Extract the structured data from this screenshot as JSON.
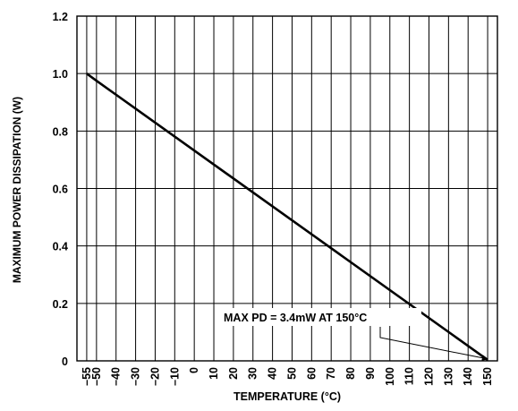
{
  "chart_data": {
    "type": "line",
    "title": "",
    "xlabel": "TEMPERATURE (°C)",
    "ylabel": "MAXIMUM POWER DISSIPATION (W)",
    "xlim": [
      -60,
      155
    ],
    "ylim": [
      0,
      1.2
    ],
    "grid": true,
    "x_ticks": [
      -55,
      -50,
      -40,
      -30,
      -20,
      -10,
      0,
      10,
      20,
      30,
      40,
      50,
      60,
      70,
      80,
      90,
      100,
      110,
      120,
      130,
      140,
      150
    ],
    "x_tick_labels": [
      "–55",
      "–50",
      "–40",
      "–30",
      "–20",
      "–10",
      "0",
      "10",
      "20",
      "30",
      "40",
      "50",
      "60",
      "70",
      "80",
      "90",
      "100",
      "110",
      "120",
      "130",
      "140",
      "150"
    ],
    "y_ticks": [
      0,
      0.2,
      0.4,
      0.6,
      0.8,
      1.0,
      1.2
    ],
    "y_tick_labels": [
      "0",
      "0.2",
      "0.4",
      "0.6",
      "0.8",
      "1.0",
      "1.2"
    ],
    "series": [
      {
        "color": "#000000",
        "x": [
          -55,
          -50,
          150
        ],
        "y": [
          1.0,
          0.975,
          0.0034
        ]
      }
    ],
    "annotations": [
      {
        "text": "MAX PD = 3.4mW AT 150°C",
        "x": 150,
        "y": 0.0034
      }
    ]
  }
}
